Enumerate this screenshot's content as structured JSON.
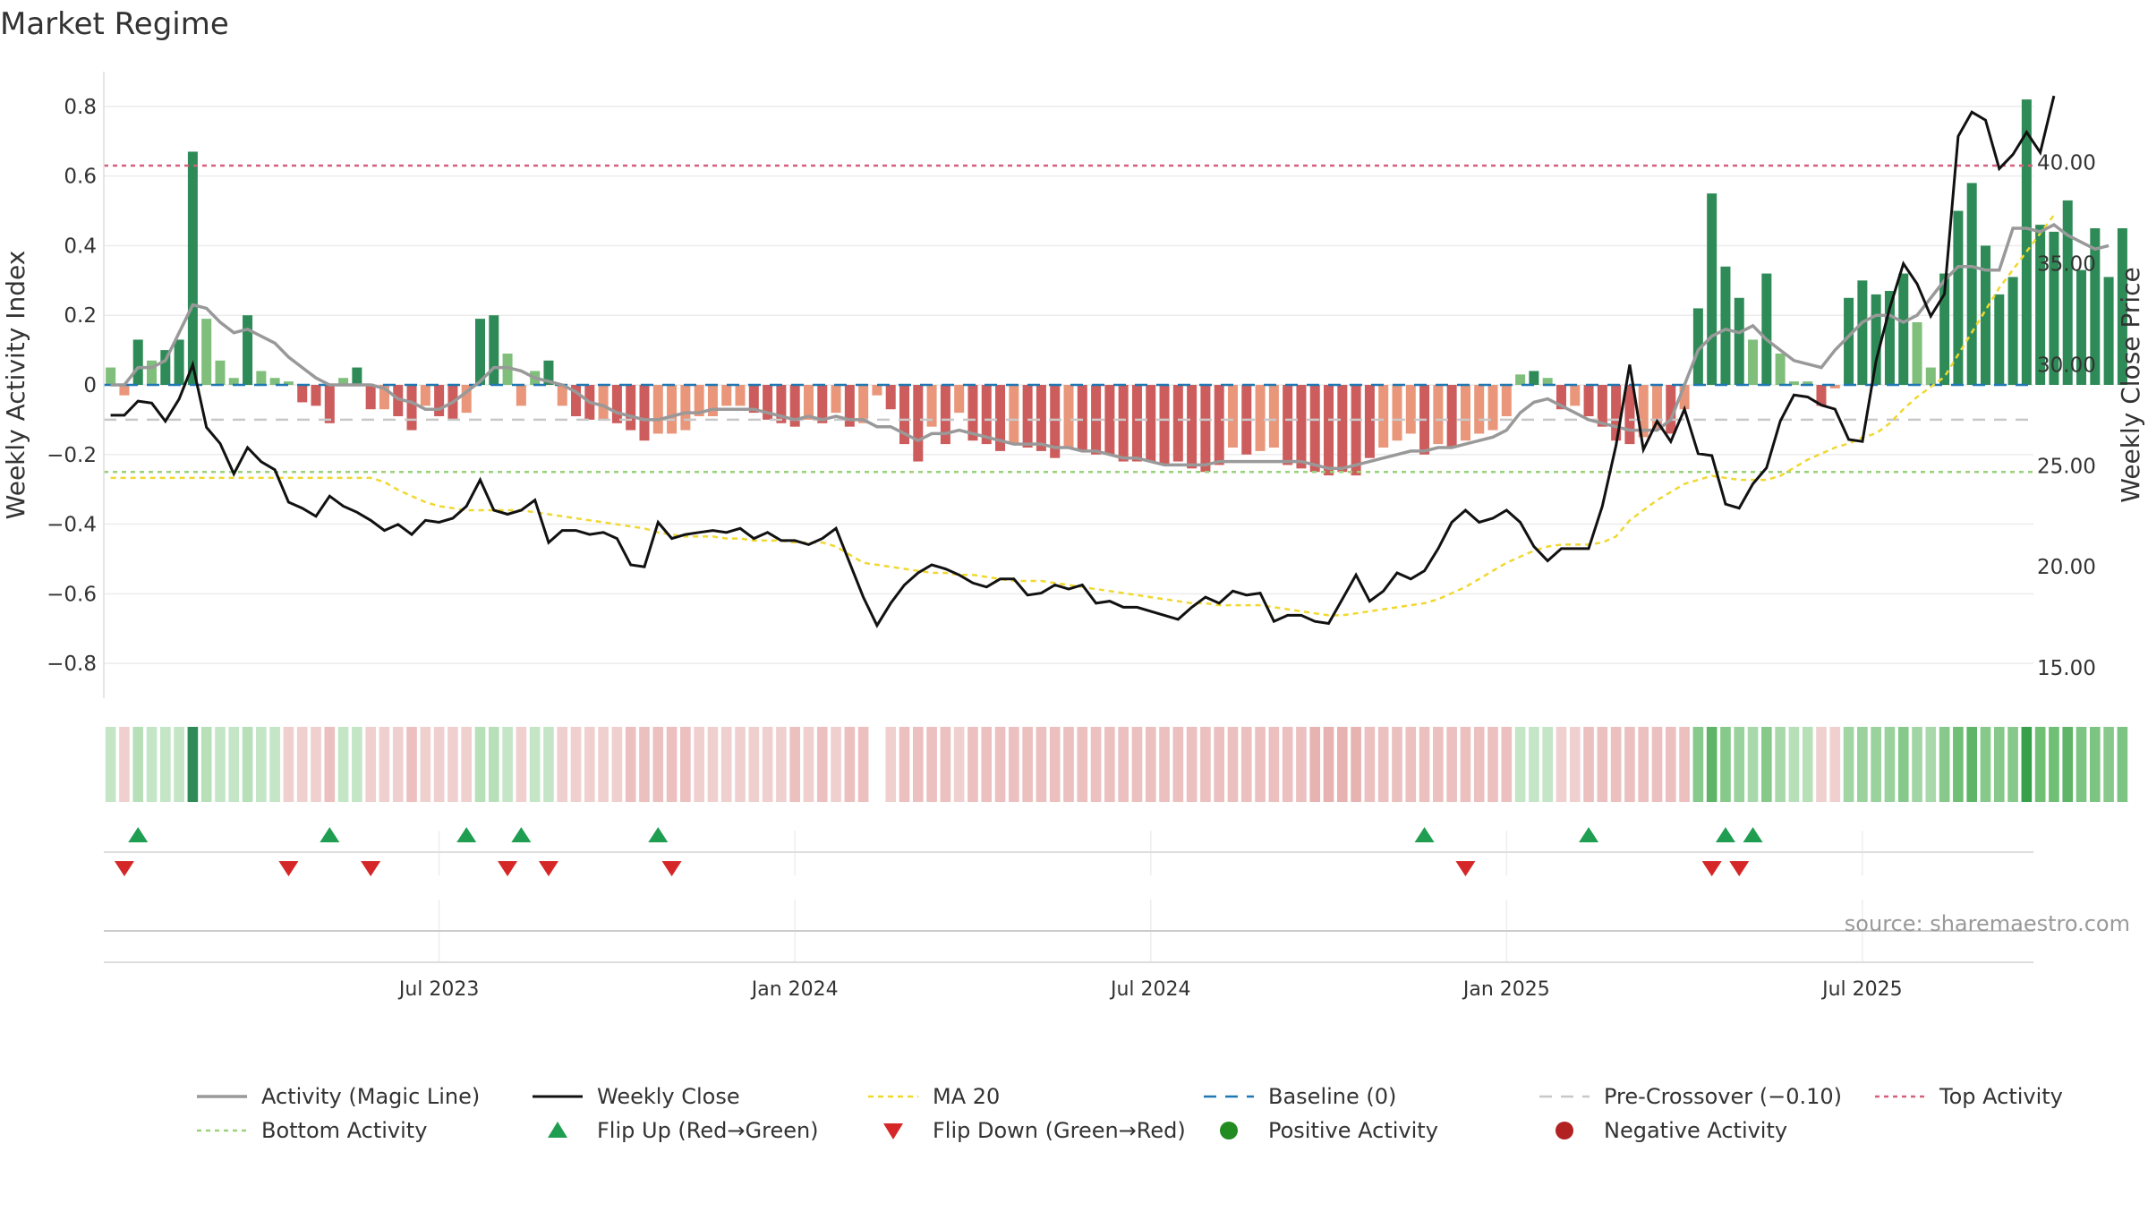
{
  "colors": {
    "strong_green": "#2e8b57",
    "light_green": "#7fbf7b",
    "strong_red": "#cd5c5c",
    "light_red": "#e9967a",
    "magic_line": "#999999",
    "close_line": "#111111",
    "ma20": "#f0d830",
    "baseline": "#1f77b4",
    "pre_crossover": "#c8c8c8",
    "top_activity": "#d65f7a",
    "bottom_activity": "#9ad17a",
    "flip_up": "#1f9e52",
    "flip_down": "#d62728",
    "positive_dot": "#228b22",
    "negative_dot": "#b22222",
    "grid": "#ececec"
  },
  "chart_data": {
    "type": "bar",
    "title": "Market Regime",
    "source": "source: sharemaestro.com",
    "xlabel": "",
    "ylabel_left": "Weekly Activity Index",
    "ylabel_right": "Weekly Close Price",
    "ylim_left": [
      -0.9,
      0.9
    ],
    "ylim_right": [
      13.5,
      44.5
    ],
    "yticks_left": [
      "0.8",
      "0.6",
      "0.4",
      "0.2",
      "0",
      "−0.2",
      "−0.4",
      "−0.6",
      "−0.8"
    ],
    "ytick_values_left": [
      0.8,
      0.6,
      0.4,
      0.2,
      0,
      -0.2,
      -0.4,
      -0.6,
      -0.8
    ],
    "yticks_right": [
      "40.00",
      "35.00",
      "30.00",
      "25.00",
      "20.00",
      "15.00"
    ],
    "ytick_values_right": [
      40,
      35,
      30,
      25,
      20,
      15
    ],
    "xticks": [
      "Jul 2023",
      "Jan 2024",
      "Jul 2024",
      "Jan 2025",
      "Jul 2025"
    ],
    "xtick_weeks": [
      24,
      50,
      76,
      102,
      128
    ],
    "weeks": 141,
    "reference_lines": {
      "baseline": 0,
      "pre_crossover": -0.1,
      "top_activity": 0.63,
      "bottom_activity": -0.25
    },
    "activity": [
      0.05,
      -0.03,
      0.13,
      0.07,
      0.1,
      0.13,
      0.67,
      0.19,
      0.07,
      0.02,
      0.2,
      0.04,
      0.02,
      0.01,
      -0.05,
      -0.06,
      -0.11,
      0.02,
      0.05,
      -0.07,
      -0.07,
      -0.09,
      -0.13,
      -0.06,
      -0.09,
      -0.1,
      -0.08,
      0.19,
      0.2,
      0.09,
      -0.06,
      0.04,
      0.07,
      -0.06,
      -0.09,
      -0.1,
      -0.1,
      -0.11,
      -0.13,
      -0.16,
      -0.14,
      -0.14,
      -0.13,
      -0.09,
      -0.09,
      -0.06,
      -0.06,
      -0.08,
      -0.1,
      -0.11,
      -0.12,
      -0.1,
      -0.11,
      -0.08,
      -0.12,
      -0.11,
      -0.03,
      -0.07,
      -0.17,
      -0.22,
      -0.12,
      -0.17,
      -0.08,
      -0.16,
      -0.17,
      -0.19,
      -0.17,
      -0.18,
      -0.19,
      -0.21,
      -0.18,
      -0.19,
      -0.2,
      -0.2,
      -0.22,
      -0.22,
      -0.22,
      -0.23,
      -0.22,
      -0.24,
      -0.25,
      -0.23,
      -0.18,
      -0.2,
      -0.19,
      -0.18,
      -0.23,
      -0.24,
      -0.25,
      -0.26,
      -0.25,
      -0.26,
      -0.21,
      -0.18,
      -0.16,
      -0.14,
      -0.2,
      -0.17,
      -0.18,
      -0.16,
      -0.14,
      -0.13,
      -0.09,
      0.03,
      0.04,
      0.02,
      -0.07,
      -0.06,
      -0.09,
      -0.12,
      -0.16,
      -0.17,
      -0.15,
      -0.13,
      -0.14,
      -0.07,
      0.22,
      0.55,
      0.34,
      0.25,
      0.13,
      0.32,
      0.09,
      0.01,
      0.01,
      -0.06,
      -0.01,
      0.25,
      0.3,
      0.26,
      0.27,
      0.32,
      0.18,
      0.05,
      0.32,
      0.5,
      0.58,
      0.4,
      0.26,
      0.31,
      0.82,
      0.46,
      0.44,
      0.53,
      0.33,
      0.45,
      0.31,
      0.45
    ],
    "magic_line": [
      0.0,
      0.0,
      0.05,
      0.05,
      0.07,
      0.15,
      0.23,
      0.22,
      0.18,
      0.15,
      0.16,
      0.14,
      0.12,
      0.08,
      0.05,
      0.02,
      0.0,
      0.0,
      0.0,
      0.0,
      -0.01,
      -0.04,
      -0.05,
      -0.07,
      -0.07,
      -0.05,
      -0.02,
      0.01,
      0.05,
      0.05,
      0.04,
      0.02,
      0.01,
      0.0,
      -0.02,
      -0.05,
      -0.06,
      -0.08,
      -0.09,
      -0.1,
      -0.1,
      -0.09,
      -0.08,
      -0.08,
      -0.07,
      -0.07,
      -0.07,
      -0.07,
      -0.08,
      -0.09,
      -0.1,
      -0.09,
      -0.1,
      -0.09,
      -0.1,
      -0.1,
      -0.12,
      -0.12,
      -0.14,
      -0.16,
      -0.14,
      -0.14,
      -0.13,
      -0.14,
      -0.15,
      -0.16,
      -0.17,
      -0.17,
      -0.17,
      -0.18,
      -0.18,
      -0.19,
      -0.19,
      -0.2,
      -0.21,
      -0.21,
      -0.22,
      -0.23,
      -0.23,
      -0.23,
      -0.23,
      -0.22,
      -0.22,
      -0.22,
      -0.22,
      -0.22,
      -0.22,
      -0.22,
      -0.23,
      -0.24,
      -0.24,
      -0.23,
      -0.22,
      -0.21,
      -0.2,
      -0.19,
      -0.19,
      -0.18,
      -0.18,
      -0.17,
      -0.16,
      -0.15,
      -0.13,
      -0.08,
      -0.05,
      -0.04,
      -0.06,
      -0.08,
      -0.1,
      -0.11,
      -0.12,
      -0.13,
      -0.13,
      -0.13,
      -0.1,
      0.0,
      0.1,
      0.14,
      0.16,
      0.15,
      0.17,
      0.13,
      0.1,
      0.07,
      0.06,
      0.05,
      0.1,
      0.14,
      0.18,
      0.2,
      0.2,
      0.18,
      0.2,
      0.25,
      0.3,
      0.34,
      0.34,
      0.33,
      0.33,
      0.45,
      0.45,
      0.44,
      0.46,
      0.43,
      0.41,
      0.39,
      0.4
    ],
    "close": [
      27.5,
      27.5,
      28.2,
      28.1,
      27.2,
      28.3,
      30.0,
      26.9,
      26.1,
      24.6,
      25.9,
      25.2,
      24.8,
      23.2,
      22.9,
      22.5,
      23.5,
      23.0,
      22.7,
      22.3,
      21.8,
      22.1,
      21.6,
      22.3,
      22.2,
      22.4,
      23.0,
      24.3,
      22.8,
      22.6,
      22.8,
      23.3,
      21.2,
      21.8,
      21.8,
      21.6,
      21.7,
      21.4,
      20.1,
      20.0,
      22.2,
      21.4,
      21.6,
      21.7,
      21.8,
      21.7,
      21.9,
      21.4,
      21.7,
      21.3,
      21.3,
      21.1,
      21.4,
      21.9,
      20.2,
      18.5,
      17.1,
      18.2,
      19.1,
      19.7,
      20.1,
      19.9,
      19.6,
      19.2,
      19.0,
      19.4,
      19.4,
      18.6,
      18.7,
      19.1,
      18.9,
      19.1,
      18.2,
      18.3,
      18.0,
      18.0,
      17.8,
      17.6,
      17.4,
      18.0,
      18.5,
      18.2,
      18.8,
      18.6,
      18.7,
      17.3,
      17.6,
      17.6,
      17.3,
      17.2,
      18.4,
      19.6,
      18.3,
      18.8,
      19.7,
      19.4,
      19.8,
      20.9,
      22.2,
      22.8,
      22.2,
      22.4,
      22.8,
      22.2,
      21.0,
      20.3,
      20.9,
      20.9,
      20.9,
      23.0,
      26.0,
      30.0,
      25.8,
      27.2,
      26.2,
      27.8,
      25.6,
      25.5,
      23.1,
      22.9,
      24.1,
      24.9,
      27.2,
      28.5,
      28.4,
      28.0,
      27.8,
      26.3,
      26.2,
      30.2,
      32.8,
      35.0,
      34.0,
      32.4,
      33.5,
      41.3,
      42.5,
      42.1,
      39.7,
      40.4,
      41.5,
      40.5,
      43.3
    ],
    "ma20": [
      24.4,
      24.4,
      24.4,
      24.4,
      24.4,
      24.4,
      24.4,
      24.4,
      24.4,
      24.4,
      24.4,
      24.4,
      24.4,
      24.4,
      24.4,
      24.4,
      24.4,
      24.4,
      24.4,
      24.4,
      24.2,
      23.8,
      23.5,
      23.2,
      23.0,
      22.9,
      22.8,
      22.8,
      22.8,
      22.8,
      22.8,
      22.7,
      22.6,
      22.5,
      22.4,
      22.3,
      22.2,
      22.1,
      22.0,
      21.9,
      21.7,
      21.6,
      21.5,
      21.5,
      21.5,
      21.4,
      21.4,
      21.3,
      21.3,
      21.3,
      21.2,
      21.2,
      21.2,
      21.0,
      20.6,
      20.2,
      20.1,
      20.0,
      19.9,
      19.8,
      19.7,
      19.7,
      19.6,
      19.6,
      19.5,
      19.4,
      19.3,
      19.3,
      19.3,
      19.2,
      19.1,
      19.0,
      18.9,
      18.8,
      18.7,
      18.6,
      18.5,
      18.4,
      18.3,
      18.2,
      18.2,
      18.1,
      18.1,
      18.1,
      18.1,
      18.0,
      17.9,
      17.8,
      17.7,
      17.6,
      17.6,
      17.7,
      17.8,
      17.9,
      18.0,
      18.1,
      18.2,
      18.4,
      18.7,
      19.0,
      19.4,
      19.8,
      20.2,
      20.5,
      20.8,
      21.0,
      21.1,
      21.1,
      21.1,
      21.2,
      21.5,
      22.3,
      22.8,
      23.3,
      23.7,
      24.1,
      24.3,
      24.5,
      24.4,
      24.3,
      24.3,
      24.3,
      24.5,
      24.9,
      25.3,
      25.6,
      25.9,
      26.1,
      26.4,
      26.6,
      27.1,
      27.8,
      28.4,
      28.9,
      29.4,
      30.5,
      31.6,
      32.7,
      33.8,
      34.7,
      35.6,
      36.5,
      37.4
    ],
    "regime_strip_colors": [
      "#c4e6c6",
      "#f0d0cf",
      "#b7e0b9",
      "#c4e6c6",
      "#c4e6c6",
      "#c4e6c6",
      "#2e8b57",
      "#b7e0b9",
      "#c4e6c6",
      "#c4e6c6",
      "#b7e0b9",
      "#c4e6c6",
      "#c4e6c6",
      "#f0d0cf",
      "#f0d0cf",
      "#f0d0cf",
      "#ebc0bf",
      "#c4e6c6",
      "#c4e6c6",
      "#f0d0cf",
      "#f0d0cf",
      "#f0d0cf",
      "#ebc0bf",
      "#f0d0cf",
      "#f0d0cf",
      "#f0d0cf",
      "#f0d0cf",
      "#b7e0b9",
      "#b7e0b9",
      "#c4e6c6",
      "#f0d0cf",
      "#c4e6c6",
      "#c4e6c6",
      "#f0d0cf",
      "#f0d0cf",
      "#f0d0cf",
      "#f0d0cf",
      "#f0d0cf",
      "#ebc0bf",
      "#ebc0bf",
      "#ebc0bf",
      "#ebc0bf",
      "#ebc0bf",
      "#f0d0cf",
      "#f0d0cf",
      "#f0d0cf",
      "#f0d0cf",
      "#f0d0cf",
      "#f0d0cf",
      "#f0d0cf",
      "#ebc0bf",
      "#f0d0cf",
      "#ebc0bf",
      "#f0d0cf",
      "#ebc0bf",
      "#ebc0bf",
      "#f0d0cf",
      "#f0d0cf",
      "#ebc0bf",
      "#ebc0bf",
      "#ebc0bf",
      "#ebc0bf",
      "#f0d0cf",
      "#ebc0bf",
      "#ebc0bf",
      "#ebc0bf",
      "#ebc0bf",
      "#ebc0bf",
      "#ebc0bf",
      "#ebc0bf",
      "#ebc0bf",
      "#ebc0bf",
      "#ebc0bf",
      "#ebc0bf",
      "#ebc0bf",
      "#ebc0bf",
      "#ebc0bf",
      "#ebc0bf",
      "#ebc0bf",
      "#ebc0bf",
      "#ebc0bf",
      "#ebc0bf",
      "#ebc0bf",
      "#ebc0bf",
      "#ebc0bf",
      "#ebc0bf",
      "#ebc0bf",
      "#ebc0bf",
      "#e6b3b1",
      "#e6b3b1",
      "#e6b3b1",
      "#e6b3b1",
      "#ebc0bf",
      "#ebc0bf",
      "#ebc0bf",
      "#ebc0bf",
      "#ebc0bf",
      "#ebc0bf",
      "#ebc0bf",
      "#ebc0bf",
      "#ebc0bf",
      "#ebc0bf",
      "#ebc0bf",
      "#c4e6c6",
      "#c4e6c6",
      "#c4e6c6",
      "#f0d0cf",
      "#f0d0cf",
      "#ebc0bf",
      "#ebc0bf",
      "#ebc0bf",
      "#ebc0bf",
      "#ebc0bf",
      "#ebc0bf",
      "#ebc0bf",
      "#ebc0bf",
      "#86c98a",
      "#5fb567",
      "#86c98a",
      "#99d29c",
      "#a9d9ab",
      "#86c98a",
      "#a9d9ab",
      "#b7e0b9",
      "#b7e0b9",
      "#f0d0cf",
      "#f0d0cf",
      "#a1d5a3",
      "#99d29c",
      "#99d29c",
      "#99d29c",
      "#86c98a",
      "#a1d5a3",
      "#a9d9ab",
      "#86c98a",
      "#6fbf75",
      "#5fb567",
      "#86c98a",
      "#86c98a",
      "#86c98a",
      "#38a04a",
      "#6fbf75",
      "#6fbf75",
      "#5fb567",
      "#7cc481",
      "#7cc481",
      "#86c98a",
      "#7cc481"
    ],
    "strip_gap_week": 56,
    "flip_up_weeks": [
      2,
      16,
      26,
      30,
      40,
      96,
      108,
      118,
      120
    ],
    "flip_down_weeks": [
      1,
      13,
      19,
      29,
      32,
      41,
      99,
      117,
      119
    ],
    "legend": [
      "Activity (Magic Line)",
      "Weekly Close",
      "MA 20",
      "Baseline (0)",
      "Pre-Crossover (−0.10)",
      "Top Activity",
      "Bottom Activity",
      "Flip Up (Red→Green)",
      "Flip Down (Green→Red)",
      "Positive Activity",
      "Negative Activity"
    ]
  }
}
